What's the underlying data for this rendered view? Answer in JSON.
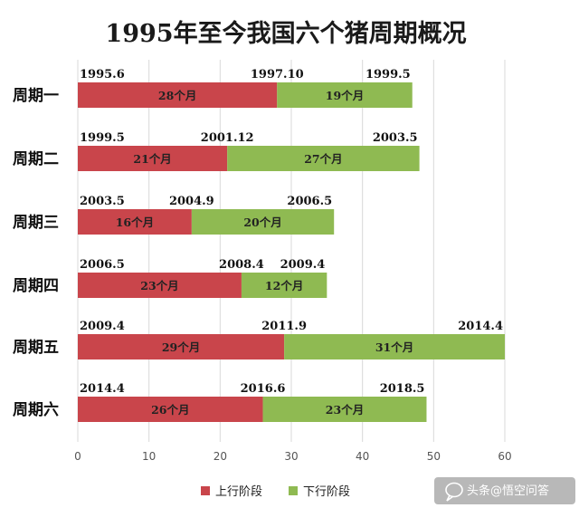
{
  "chart_data": {
    "type": "bar",
    "orientation": "horizontal",
    "stacked": true,
    "title": "1995年至今我国六个猪周期概况",
    "categories": [
      "周期一",
      "周期二",
      "周期三",
      "周期四",
      "周期五",
      "周期六"
    ],
    "series": [
      {
        "name": "上行阶段",
        "color": "#c9454b",
        "values": [
          28,
          21,
          16,
          23,
          29,
          26
        ],
        "labels": [
          "28个月",
          "21个月",
          "16个月",
          "23个月",
          "29个月",
          "26个月"
        ]
      },
      {
        "name": "下行阶段",
        "color": "#8fba52",
        "values": [
          19,
          27,
          20,
          12,
          31,
          23
        ],
        "labels": [
          "19个月",
          "27个月",
          "20个月",
          "12个月",
          "31个月",
          "23个月"
        ]
      }
    ],
    "dates": [
      [
        "1995.6",
        "1997.10",
        "1999.5"
      ],
      [
        "1999.5",
        "2001.12",
        "2003.5"
      ],
      [
        "2003.5",
        "2004.9",
        "2006.5"
      ],
      [
        "2006.5",
        "2008.4",
        "2009.4"
      ],
      [
        "2009.4",
        "2011.9",
        "2014.4"
      ],
      [
        "2014.4",
        "2016.6",
        "2018.5"
      ]
    ],
    "xlim": [
      0,
      60
    ],
    "xticks": [
      "0",
      "10",
      "20",
      "30",
      "40",
      "50",
      "60"
    ],
    "grid": "vertical",
    "legend": "bottom"
  },
  "watermark": {
    "text": "头条@悟空问答",
    "icon": "chat-bubble-icon"
  }
}
